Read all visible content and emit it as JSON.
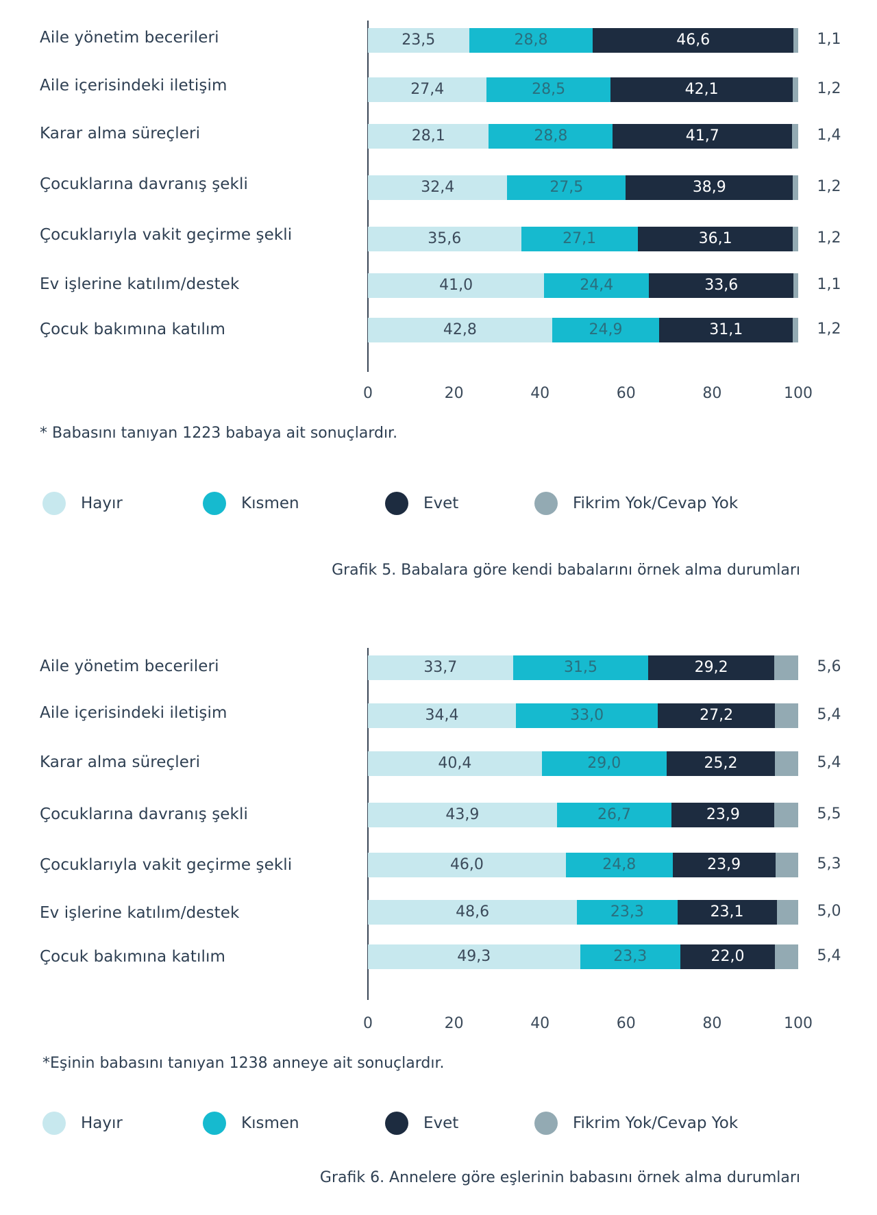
{
  "colors": {
    "hayir": "#c7e8ee",
    "kismen": "#16bacf",
    "evet": "#1d2c40",
    "fikrim": "#93aab3"
  },
  "legend": {
    "hayir": "Hayır",
    "kismen": "Kısmen",
    "evet": "Evet",
    "fikrim": "Fikrim Yok/Cevap Yok"
  },
  "chart_data": [
    {
      "type": "bar",
      "orientation": "horizontal-stacked",
      "title": "Grafik 5. Babalara göre kendi babalarını örnek alma durumları",
      "note": "* Babasını tanıyan 1223 babaya ait sonuçlardır.",
      "categories": [
        "Aile yönetim becerileri",
        "Aile içerisindeki iletişim",
        "Karar alma süreçleri",
        "Çocuklarına davranış şekli",
        "Çocuklarıyla vakit geçirme şekli",
        "Ev işlerine katılım/destek",
        "Çocuk bakımına katılım"
      ],
      "series": [
        {
          "name": "Hayır",
          "values": [
            "23,5",
            "27,4",
            "28,1",
            "32,4",
            "35,6",
            "41,0",
            "42,8"
          ]
        },
        {
          "name": "Kısmen",
          "values": [
            "28,8",
            "28,5",
            "28,8",
            "27,5",
            "27,1",
            "24,4",
            "24,9"
          ]
        },
        {
          "name": "Evet",
          "values": [
            "46,6",
            "42,1",
            "41,7",
            "38,9",
            "36,1",
            "33,6",
            "31,1"
          ]
        },
        {
          "name": "Fikrim Yok/Cevap Yok",
          "values": [
            "1,1",
            "1,2",
            "1,4",
            "1,2",
            "1,2",
            "1,1",
            "1,2"
          ]
        }
      ],
      "xticks": [
        "0",
        "20",
        "40",
        "60",
        "80",
        "100"
      ],
      "xlim": [
        0,
        100
      ]
    },
    {
      "type": "bar",
      "orientation": "horizontal-stacked",
      "title": "Grafik 6. Annelere göre eşlerinin babasını örnek alma durumları",
      "note": "*Eşinin babasını tanıyan 1238 anneye ait sonuçlardır.",
      "categories": [
        "Aile yönetim becerileri",
        "Aile içerisindeki iletişim",
        "Karar alma süreçleri",
        "Çocuklarına davranış şekli",
        "Çocuklarıyla vakit geçirme şekli",
        "Ev işlerine katılım/destek",
        "Çocuk bakımına katılım"
      ],
      "series": [
        {
          "name": "Hayır",
          "values": [
            "33,7",
            "34,4",
            "40,4",
            "43,9",
            "46,0",
            "48,6",
            "49,3"
          ]
        },
        {
          "name": "Kısmen",
          "values": [
            "31,5",
            "33,0",
            "29,0",
            "26,7",
            "24,8",
            "23,3",
            "23,3"
          ]
        },
        {
          "name": "Evet",
          "values": [
            "29,2",
            "27,2",
            "25,2",
            "23,9",
            "23,9",
            "23,1",
            "22,0"
          ]
        },
        {
          "name": "Fikrim Yok/Cevap Yok",
          "values": [
            "5,6",
            "5,4",
            "5,4",
            "5,5",
            "5,3",
            "5,0",
            "5,4"
          ]
        }
      ],
      "xticks": [
        "0",
        "20",
        "40",
        "60",
        "80",
        "100"
      ],
      "xlim": [
        0,
        100
      ]
    }
  ]
}
